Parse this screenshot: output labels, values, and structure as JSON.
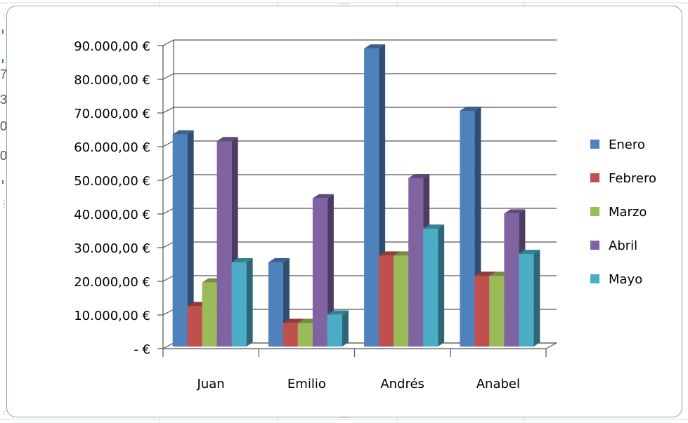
{
  "chart_data": {
    "type": "bar",
    "subtype": "3d-clustered-column",
    "categories": [
      "Juan",
      "Emilio",
      "Andrés",
      "Anabel"
    ],
    "series": [
      {
        "name": "Enero",
        "color": "#4f81bd",
        "values": [
          63000,
          25000,
          88500,
          70000
        ]
      },
      {
        "name": "Febrero",
        "color": "#c0504d",
        "values": [
          12000,
          7000,
          27000,
          21000
        ]
      },
      {
        "name": "Marzo",
        "color": "#9bbb59",
        "values": [
          19000,
          7000,
          27000,
          21000
        ]
      },
      {
        "name": "Abril",
        "color": "#8064a2",
        "values": [
          61000,
          44000,
          50000,
          39500
        ]
      },
      {
        "name": "Mayo",
        "color": "#4bacc6",
        "values": [
          25000,
          9500,
          35000,
          27500
        ]
      }
    ],
    "y_ticks": [
      {
        "value": 0,
        "label": "-  €"
      },
      {
        "value": 10000,
        "label": "10.000,00 €"
      },
      {
        "value": 20000,
        "label": "20.000,00 €"
      },
      {
        "value": 30000,
        "label": "30.000,00 €"
      },
      {
        "value": 40000,
        "label": "40.000,00 €"
      },
      {
        "value": 50000,
        "label": "50.000,00 €"
      },
      {
        "value": 60000,
        "label": "60.000,00 €"
      },
      {
        "value": 70000,
        "label": "70.000,00 €"
      },
      {
        "value": 80000,
        "label": "80.000,00 €"
      },
      {
        "value": 90000,
        "label": "90.000,00 €"
      }
    ],
    "ylim": [
      0,
      90000
    ],
    "grid": true,
    "legend_position": "right",
    "title": "",
    "xlabel": "",
    "ylabel": ""
  },
  "sheet_edge_marks": [
    "7",
    "3",
    "0",
    "0"
  ]
}
